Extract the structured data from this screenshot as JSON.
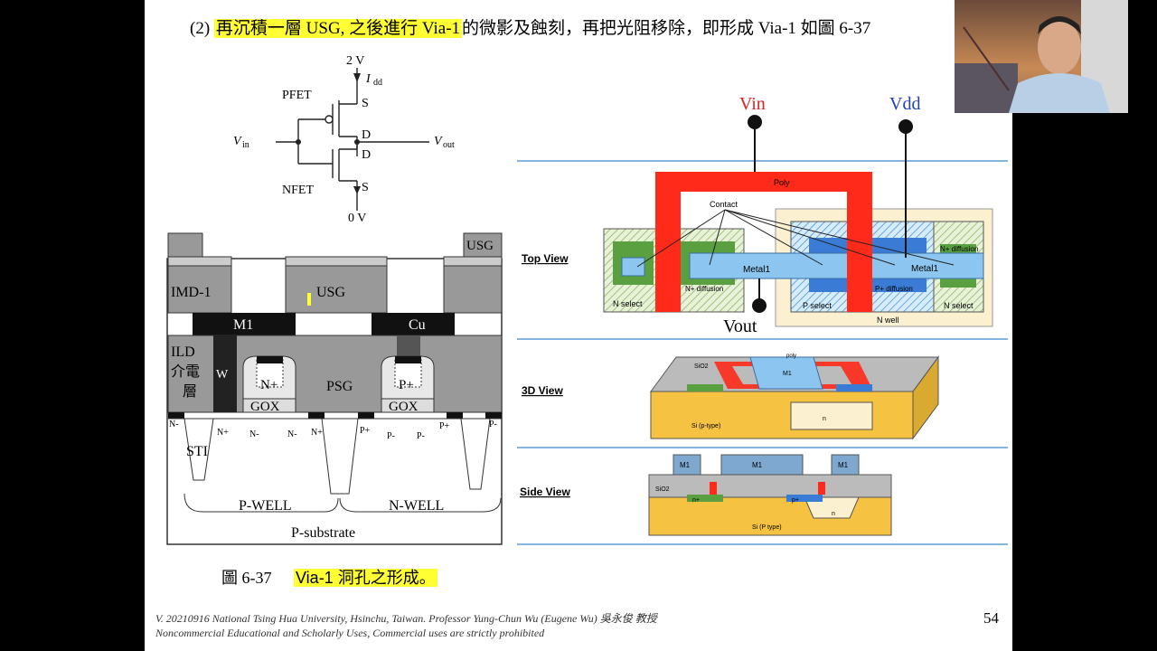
{
  "slide": {
    "title_prefix": "(2) ",
    "title_highlighted": "再沉積一層 USG, 之後進行 Via-1",
    "title_rest": "的微影及蝕刻，再把光阻移除，即形成 Via-1 如圖 6-37",
    "caption_number": "圖 6-37",
    "caption_text": "Via-1 洞孔之形成。",
    "footer_line1": "V. 20210916 National Tsing Hua University, Hsinchu, Taiwan. Professor Yung-Chun Wu (Eugene Wu) 吳永俊 教授",
    "footer_line2": "Noncommercial Educational and Scholarly Uses, Commercial uses are strictly prohibited",
    "page_number": "54"
  },
  "inverter": {
    "vdd": "2 V",
    "idd": "I",
    "idd_sub": "dd",
    "pfet": "PFET",
    "nfet": "NFET",
    "s_top": "S",
    "d_top": "D",
    "d_bottom": "D",
    "s_bottom": "S",
    "vin": "V",
    "vin_sub": "in",
    "vout": "V",
    "vout_sub": "out",
    "gnd": "0 V"
  },
  "cross_section": {
    "usg_top": "USG",
    "imd": "IMD-1",
    "usg_mid": "USG",
    "m1": "M1",
    "cu": "Cu",
    "ild": "ILD",
    "ild_cn1": "介電",
    "ild_cn2": "層",
    "w": "W",
    "psg": "PSG",
    "n_gate": "N+",
    "p_gate": "P+",
    "gox1": "GOX",
    "gox2": "GOX",
    "sti": "STI",
    "pwell": "P-WELL",
    "nwell": "N-WELL",
    "psub": "P-substrate",
    "dopings": [
      "N-",
      "N+",
      "N-",
      "N-",
      "N+",
      "P+",
      "P-",
      "P-",
      "P+",
      "P-"
    ]
  },
  "layout": {
    "vin": "Vin",
    "vdd": "Vdd",
    "vout": "Vout",
    "top_view": "Top View",
    "view3d": "3D View",
    "side_view": "Side View",
    "poly": "Poly",
    "contact": "Contact",
    "metal1_a": "Metal1",
    "metal1_b": "Metal1",
    "n_diff": "N+ diffusion",
    "p_diff": "P+ diffusion",
    "n_diff2": "N+ diffusion",
    "n_select": "N select",
    "p_select": "P select",
    "n_select2": "N select",
    "n_well": "N well",
    "sio2_3d": "SiO2",
    "m1_3d": "M1",
    "poly_3d": "poly",
    "si_3d": "Si (p-type)",
    "n_3d": "n",
    "m1_side_a": "M1",
    "m1_side_b": "M1",
    "m1_side_c": "M1",
    "sio2_side": "SiO2",
    "nplus_side": "n+",
    "pplus_side": "p+",
    "n_side": "n",
    "si_side": "Si (P type)"
  },
  "colors": {
    "highlight": "#ffff33",
    "vin_red": "#e02020",
    "vdd_blue": "#2040c0",
    "poly_red": "#ff2a1a",
    "metal_blue": "#7fb6e6",
    "substrate_gold": "#f5c242"
  }
}
